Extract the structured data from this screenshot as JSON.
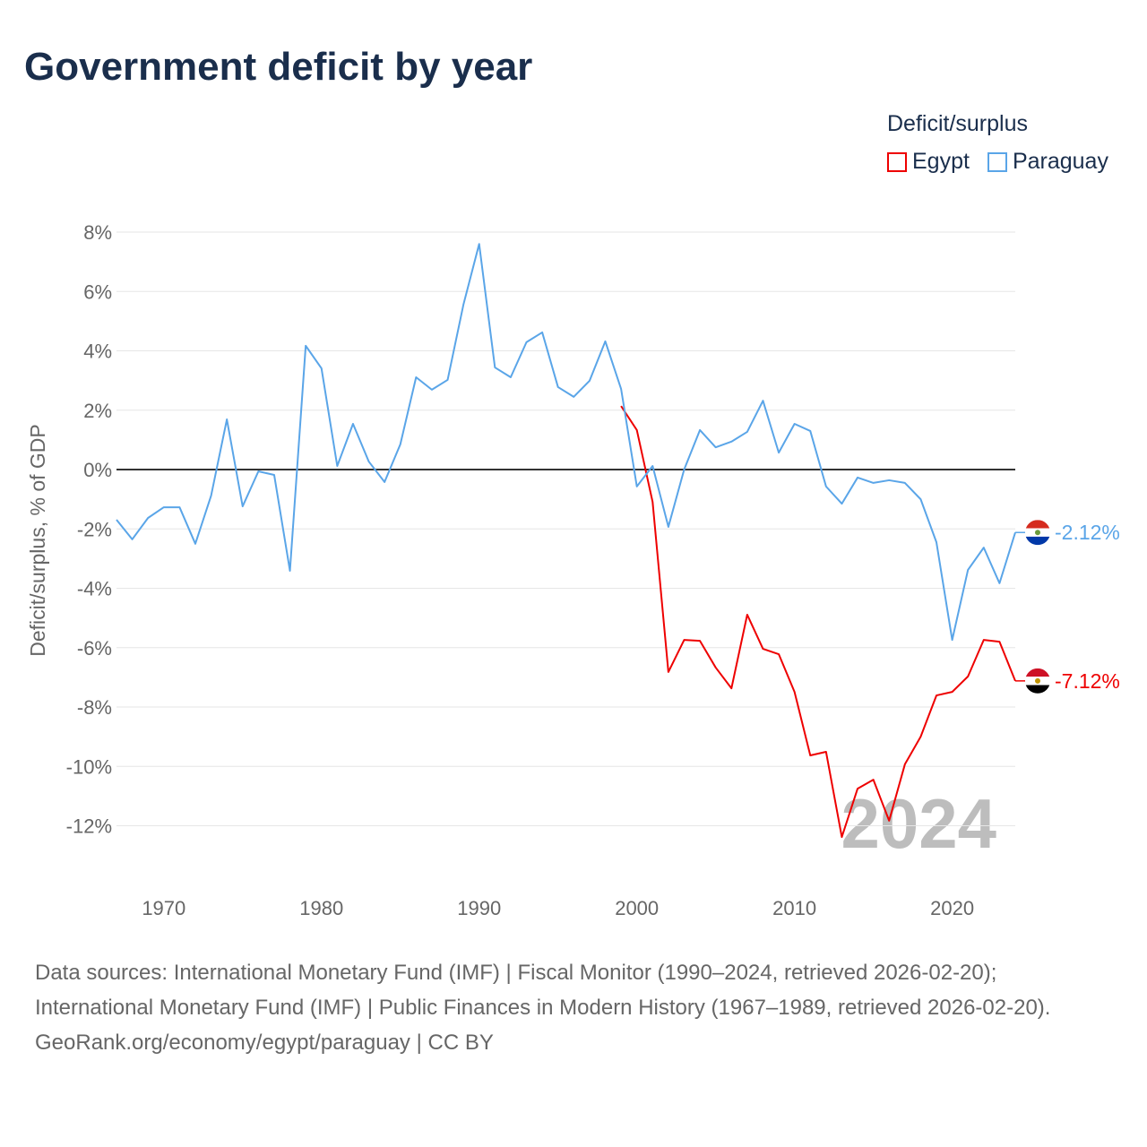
{
  "title": "Government deficit by year",
  "legend": {
    "title": "Deficit/surplus",
    "entries": [
      "Egypt",
      "Paraguay"
    ]
  },
  "footer": {
    "sources": "Data sources: International Monetary Fund (IMF) | Fiscal Monitor (1990–2024, retrieved 2026-02-20); International Monetary Fund (IMF) | Public Finances in Modern History (1967–1989, retrieved 2026-02-20).",
    "credit": "GeoRank.org/economy/egypt/paraguay | CC BY"
  },
  "chart_data": {
    "type": "line",
    "title": "Government deficit by year",
    "xlabel": "",
    "ylabel": "Deficit/surplus, % of GDP",
    "xlim": [
      1967,
      2024
    ],
    "ylim": [
      -12,
      8
    ],
    "yticks": [
      8,
      6,
      4,
      2,
      0,
      -2,
      -4,
      -6,
      -8,
      -10,
      -12
    ],
    "ytick_labels": [
      "8%",
      "6%",
      "4%",
      "2%",
      "0%",
      "-2%",
      "-4%",
      "-6%",
      "-8%",
      "-10%",
      "-12%"
    ],
    "xticks": [
      1970,
      1980,
      1990,
      2000,
      2010,
      2020
    ],
    "xtick_labels": [
      "1970",
      "1980",
      "1990",
      "2000",
      "2010",
      "2020"
    ],
    "grid": true,
    "legend_position": "top-right",
    "year_watermark": "2024",
    "series": [
      {
        "name": "Egypt",
        "color": "#ee0000",
        "end_label": "-7.12%",
        "x": [
          1999,
          2000,
          2001,
          2002,
          2003,
          2004,
          2005,
          2006,
          2007,
          2008,
          2009,
          2010,
          2011,
          2012,
          2013,
          2014,
          2015,
          2016,
          2017,
          2018,
          2019,
          2020,
          2021,
          2022,
          2023,
          2024
        ],
        "values": [
          2.14,
          1.33,
          -1.09,
          -6.82,
          -5.74,
          -5.77,
          -6.67,
          -7.37,
          -4.89,
          -6.04,
          -6.22,
          -7.49,
          -9.63,
          -9.51,
          -12.38,
          -10.75,
          -10.45,
          -11.83,
          -9.93,
          -9.0,
          -7.61,
          -7.49,
          -6.97,
          -5.74,
          -5.8,
          -7.12
        ]
      },
      {
        "name": "Paraguay",
        "color": "#5aa5e8",
        "end_label": "-2.12%",
        "x": [
          1967,
          1968,
          1969,
          1970,
          1971,
          1972,
          1973,
          1974,
          1975,
          1976,
          1977,
          1978,
          1979,
          1980,
          1981,
          1982,
          1983,
          1984,
          1985,
          1986,
          1987,
          1988,
          1989,
          1990,
          1991,
          1992,
          1993,
          1994,
          1995,
          1996,
          1997,
          1998,
          1999,
          2000,
          2001,
          2002,
          2003,
          2004,
          2005,
          2006,
          2007,
          2008,
          2009,
          2010,
          2011,
          2012,
          2013,
          2014,
          2015,
          2016,
          2017,
          2018,
          2019,
          2020,
          2021,
          2022,
          2023,
          2024
        ],
        "values": [
          -1.69,
          -2.35,
          -1.63,
          -1.27,
          -1.27,
          -2.5,
          -0.88,
          1.69,
          -1.24,
          -0.06,
          -0.18,
          -3.41,
          4.17,
          3.41,
          0.12,
          1.54,
          0.27,
          -0.42,
          0.85,
          3.11,
          2.69,
          3.02,
          5.55,
          7.6,
          3.44,
          3.11,
          4.29,
          4.62,
          2.78,
          2.45,
          2.99,
          4.32,
          2.72,
          -0.57,
          0.12,
          -1.93,
          0.0,
          1.33,
          0.75,
          0.94,
          1.27,
          2.32,
          0.57,
          1.54,
          1.3,
          -0.57,
          -1.15,
          -0.27,
          -0.45,
          -0.36,
          -0.45,
          -1.0,
          -2.45,
          -5.74,
          -3.38,
          -2.63,
          -3.83,
          -2.12
        ]
      }
    ]
  }
}
